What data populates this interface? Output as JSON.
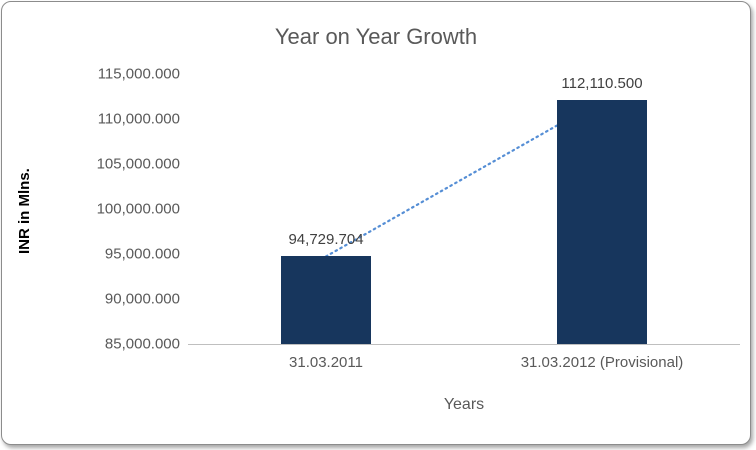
{
  "chart_data": {
    "type": "bar",
    "title": "Year on Year Growth",
    "xlabel": "Years",
    "ylabel": "INR in Mlns.",
    "categories": [
      "31.03.2011",
      "31.03.2012 (Provisional)"
    ],
    "values": [
      94729.704,
      112110.5
    ],
    "data_labels": [
      "94,729.704",
      "112,110.500"
    ],
    "ylim": [
      85000,
      115000
    ],
    "ytick_step": 5000,
    "ytick_labels": [
      "85,000.000",
      "90,000.000",
      "95,000.000",
      "100,000.000",
      "105,000.000",
      "110,000.000",
      "115,000.000"
    ],
    "bar_color": "#17365D",
    "trendline_color": "#558ED5",
    "gridlines": false,
    "legend": "none"
  }
}
